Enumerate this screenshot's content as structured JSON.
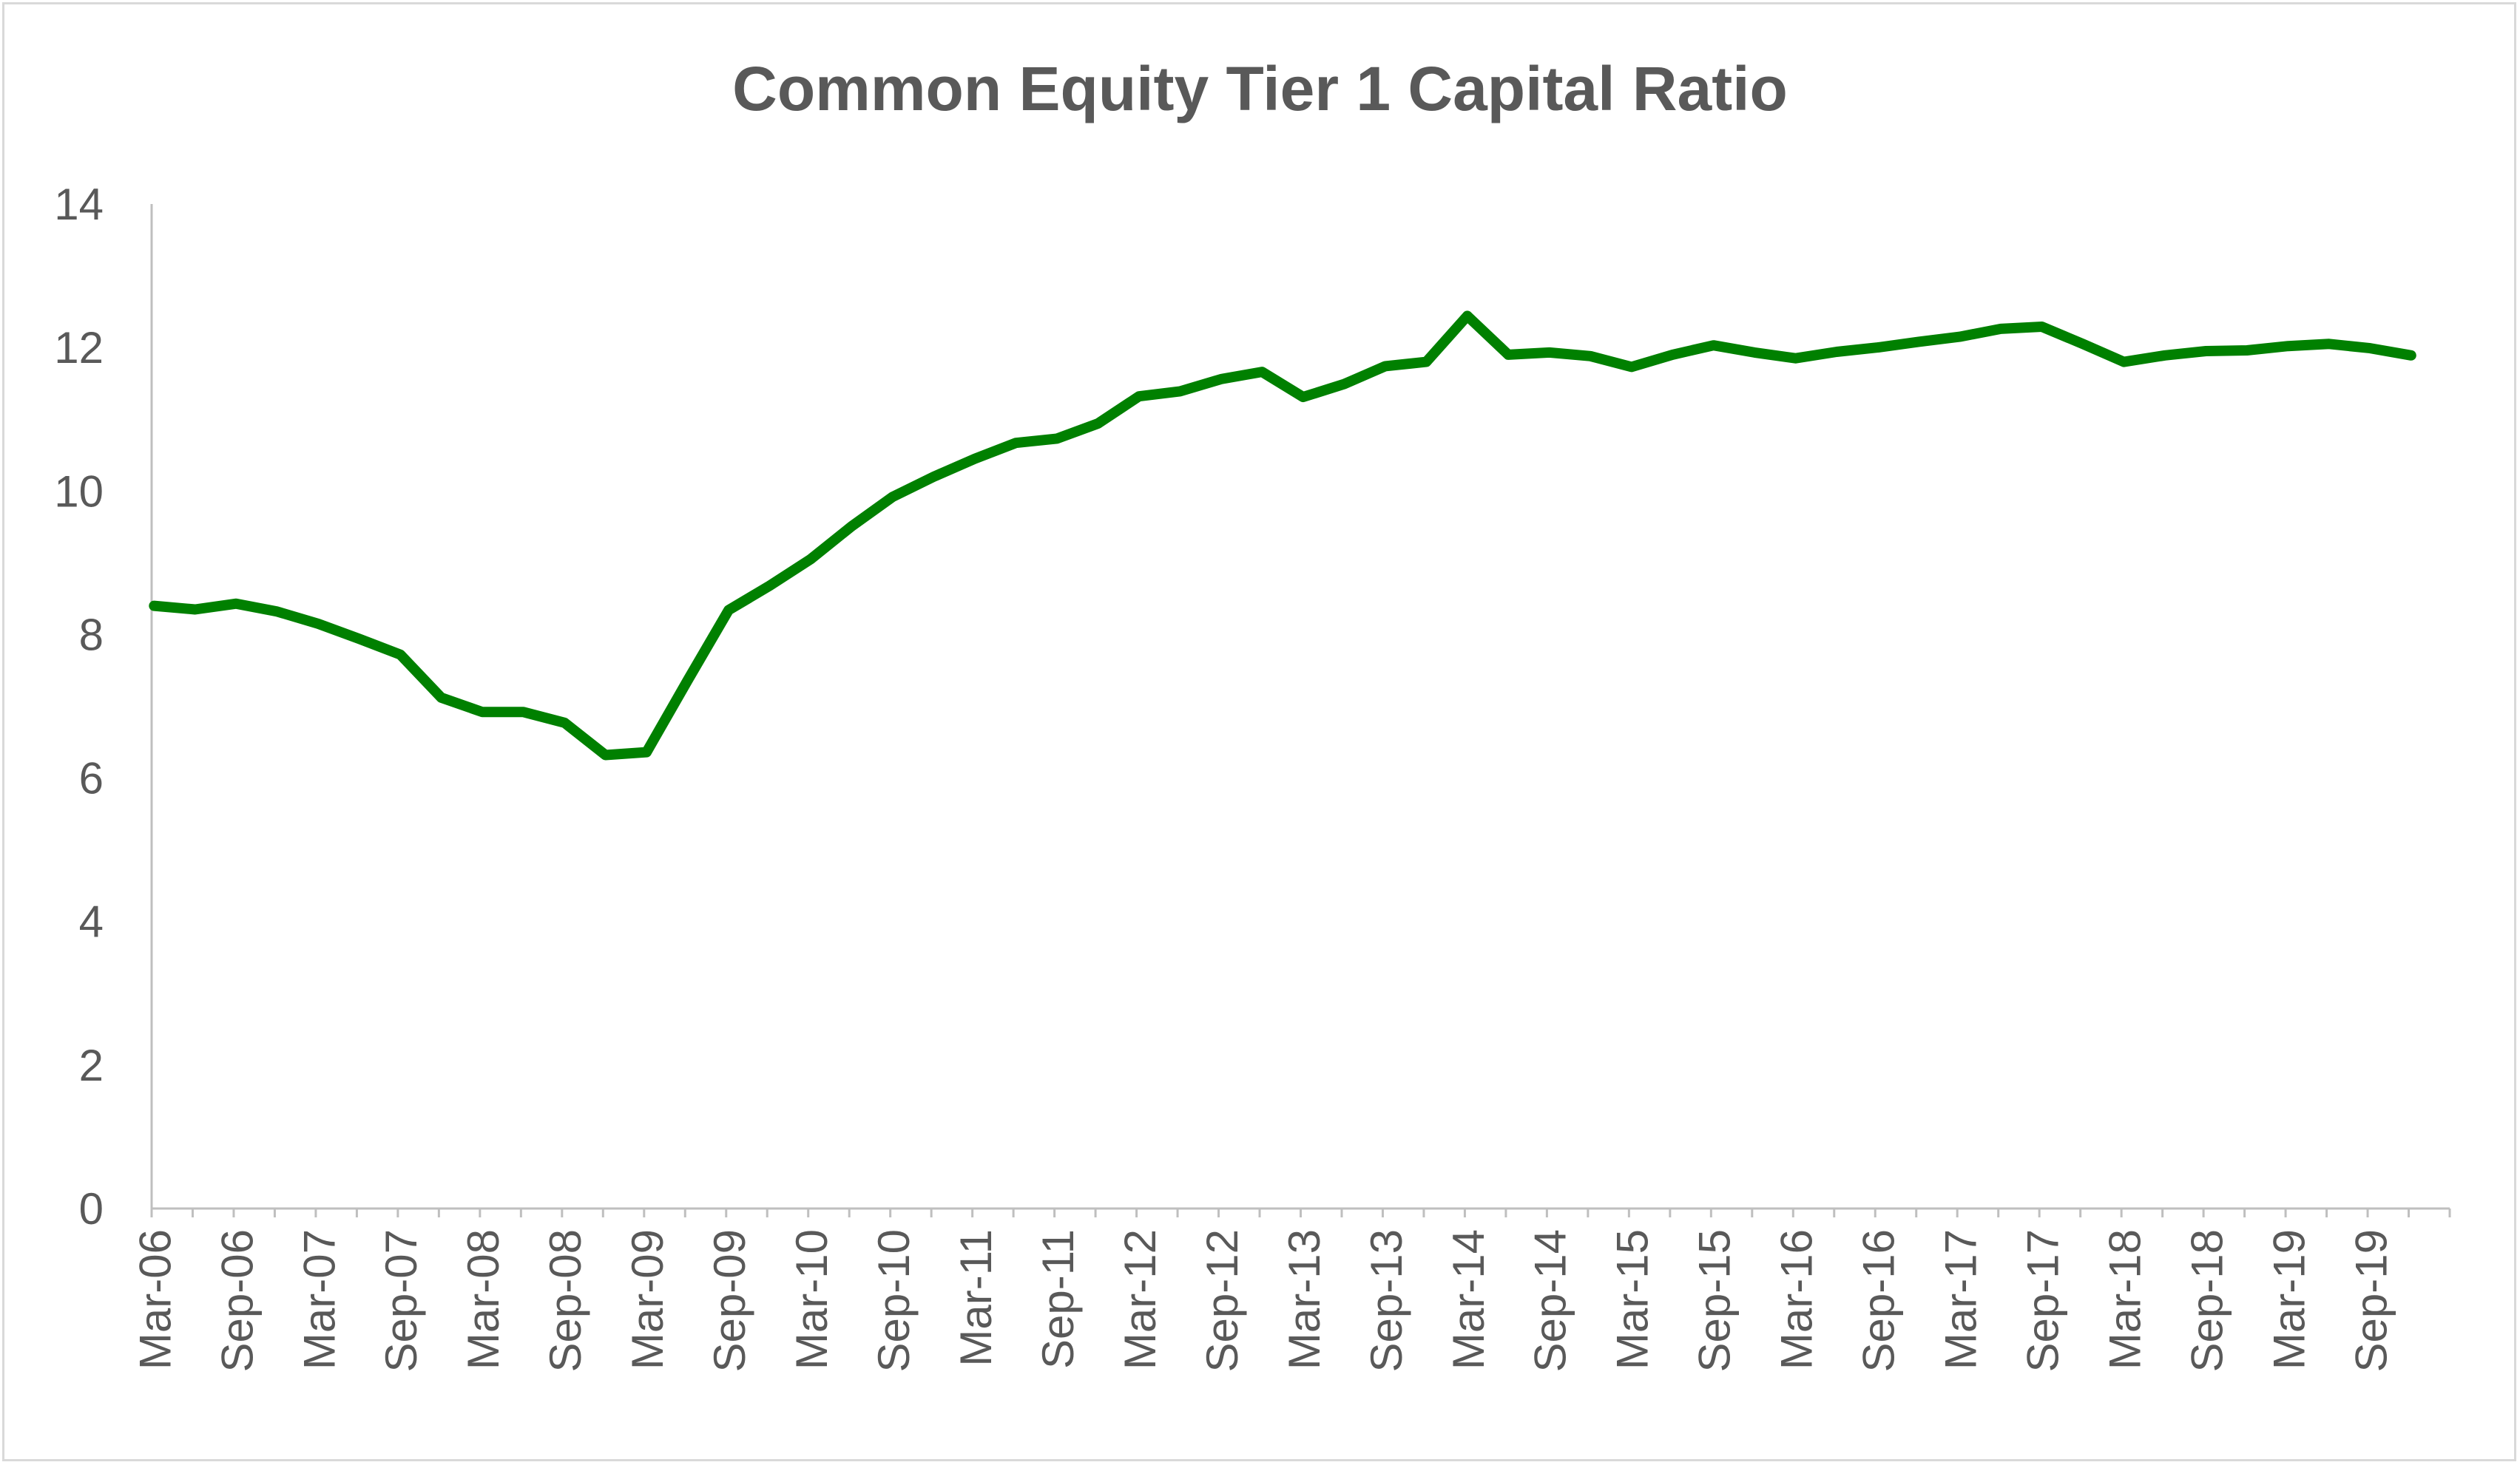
{
  "chart_data": {
    "type": "line",
    "title": "Common Equity Tier 1 Capital Ratio",
    "xlabel": "",
    "ylabel": "",
    "ylim": [
      0,
      14
    ],
    "yticks": [
      0,
      2,
      4,
      6,
      8,
      10,
      12,
      14
    ],
    "grid": false,
    "legend": "none",
    "x": [
      "Mar-06",
      "Jun-06",
      "Sep-06",
      "Dec-06",
      "Mar-07",
      "Jun-07",
      "Sep-07",
      "Dec-07",
      "Mar-08",
      "Jun-08",
      "Sep-08",
      "Dec-08",
      "Mar-09",
      "Jun-09",
      "Sep-09",
      "Dec-09",
      "Mar-10",
      "Jun-10",
      "Sep-10",
      "Dec-10",
      "Mar-11",
      "Jun-11",
      "Sep-11",
      "Dec-11",
      "Mar-12",
      "Jun-12",
      "Sep-12",
      "Dec-12",
      "Mar-13",
      "Jun-13",
      "Sep-13",
      "Dec-13",
      "Mar-14",
      "Jun-14",
      "Sep-14",
      "Dec-14",
      "Mar-15",
      "Jun-15",
      "Sep-15",
      "Dec-15",
      "Mar-16",
      "Jun-16",
      "Sep-16",
      "Dec-16",
      "Mar-17",
      "Jun-17",
      "Sep-17",
      "Dec-17",
      "Mar-18",
      "Jun-18",
      "Sep-18",
      "Dec-18",
      "Mar-19",
      "Jun-19",
      "Sep-19",
      "Dec-19"
    ],
    "x_tick_labels": [
      "Mar-06",
      "Sep-06",
      "Mar-07",
      "Sep-07",
      "Mar-08",
      "Sep-08",
      "Mar-09",
      "Sep-09",
      "Mar-10",
      "Sep-10",
      "Mar-11",
      "Sep-11",
      "Mar-12",
      "Sep-12",
      "Mar-13",
      "Sep-13",
      "Mar-14",
      "Sep-14",
      "Mar-15",
      "Sep-15",
      "Mar-16",
      "Sep-16",
      "Mar-17",
      "Sep-17",
      "Mar-18",
      "Sep-18",
      "Mar-19",
      "Sep-19"
    ],
    "series": [
      {
        "color": "#008000",
        "values": [
          8.4,
          8.35,
          8.43,
          8.32,
          8.15,
          7.94,
          7.72,
          7.12,
          6.92,
          6.92,
          6.77,
          6.32,
          6.36,
          7.36,
          8.34,
          8.68,
          9.05,
          9.51,
          9.92,
          10.2,
          10.45,
          10.67,
          10.73,
          10.94,
          11.32,
          11.39,
          11.56,
          11.66,
          11.31,
          11.49,
          11.74,
          11.8,
          12.44,
          11.9,
          11.93,
          11.88,
          11.73,
          11.9,
          12.03,
          11.93,
          11.85,
          11.94,
          12.0,
          12.08,
          12.15,
          12.26,
          12.29,
          12.05,
          11.8,
          11.89,
          11.95,
          11.96,
          12.02,
          12.05,
          11.99,
          11.89
        ]
      }
    ]
  }
}
